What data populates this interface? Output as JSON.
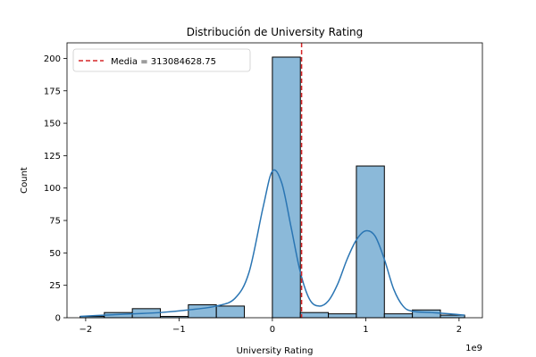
{
  "chart_data": {
    "type": "bar",
    "title": "Distribución de University Rating",
    "xlabel": "University Rating",
    "ylabel": "Count",
    "x_offset_label": "1e9",
    "xlim": [
      -2.2,
      2.25
    ],
    "ylim": [
      0,
      212
    ],
    "x_ticks": [
      -2,
      -1,
      0,
      1,
      2
    ],
    "x_tick_labels": [
      "−2",
      "−1",
      "0",
      "1",
      "2"
    ],
    "y_ticks": [
      0,
      25,
      50,
      75,
      100,
      125,
      150,
      175,
      200
    ],
    "grid": false,
    "legend_position": "top-left",
    "bin_edges": [
      -2.06,
      -1.8,
      -1.5,
      -1.2,
      -0.9,
      -0.6,
      -0.3,
      0,
      0.3,
      0.6,
      0.9,
      1.2,
      1.5,
      1.8,
      2.06
    ],
    "bin_counts": [
      1,
      4,
      7,
      1,
      10,
      9,
      0,
      201,
      4,
      3,
      117,
      3,
      6,
      2
    ],
    "mean": {
      "value": 0.313084628,
      "label": "Media = 313084628.75",
      "color": "#d62728"
    },
    "kde": {
      "x": [
        -2.06,
        -1.8,
        -1.5,
        -1.2,
        -0.9,
        -0.6,
        -0.4,
        -0.25,
        -0.1,
        0,
        0.1,
        0.2,
        0.3,
        0.4,
        0.5,
        0.6,
        0.7,
        0.8,
        0.9,
        1.0,
        1.1,
        1.2,
        1.3,
        1.4,
        1.5,
        1.7,
        1.9,
        2.06
      ],
      "y": [
        1,
        2,
        3,
        4,
        6,
        9,
        15,
        35,
        85,
        113,
        104,
        70,
        35,
        14,
        9,
        13,
        26,
        45,
        60,
        67,
        63,
        45,
        22,
        9,
        5,
        4,
        3,
        2
      ]
    },
    "colors": {
      "bar_fill": "#8bb9d9",
      "bar_edge": "#000000",
      "kde_line": "#2a75b3"
    }
  }
}
